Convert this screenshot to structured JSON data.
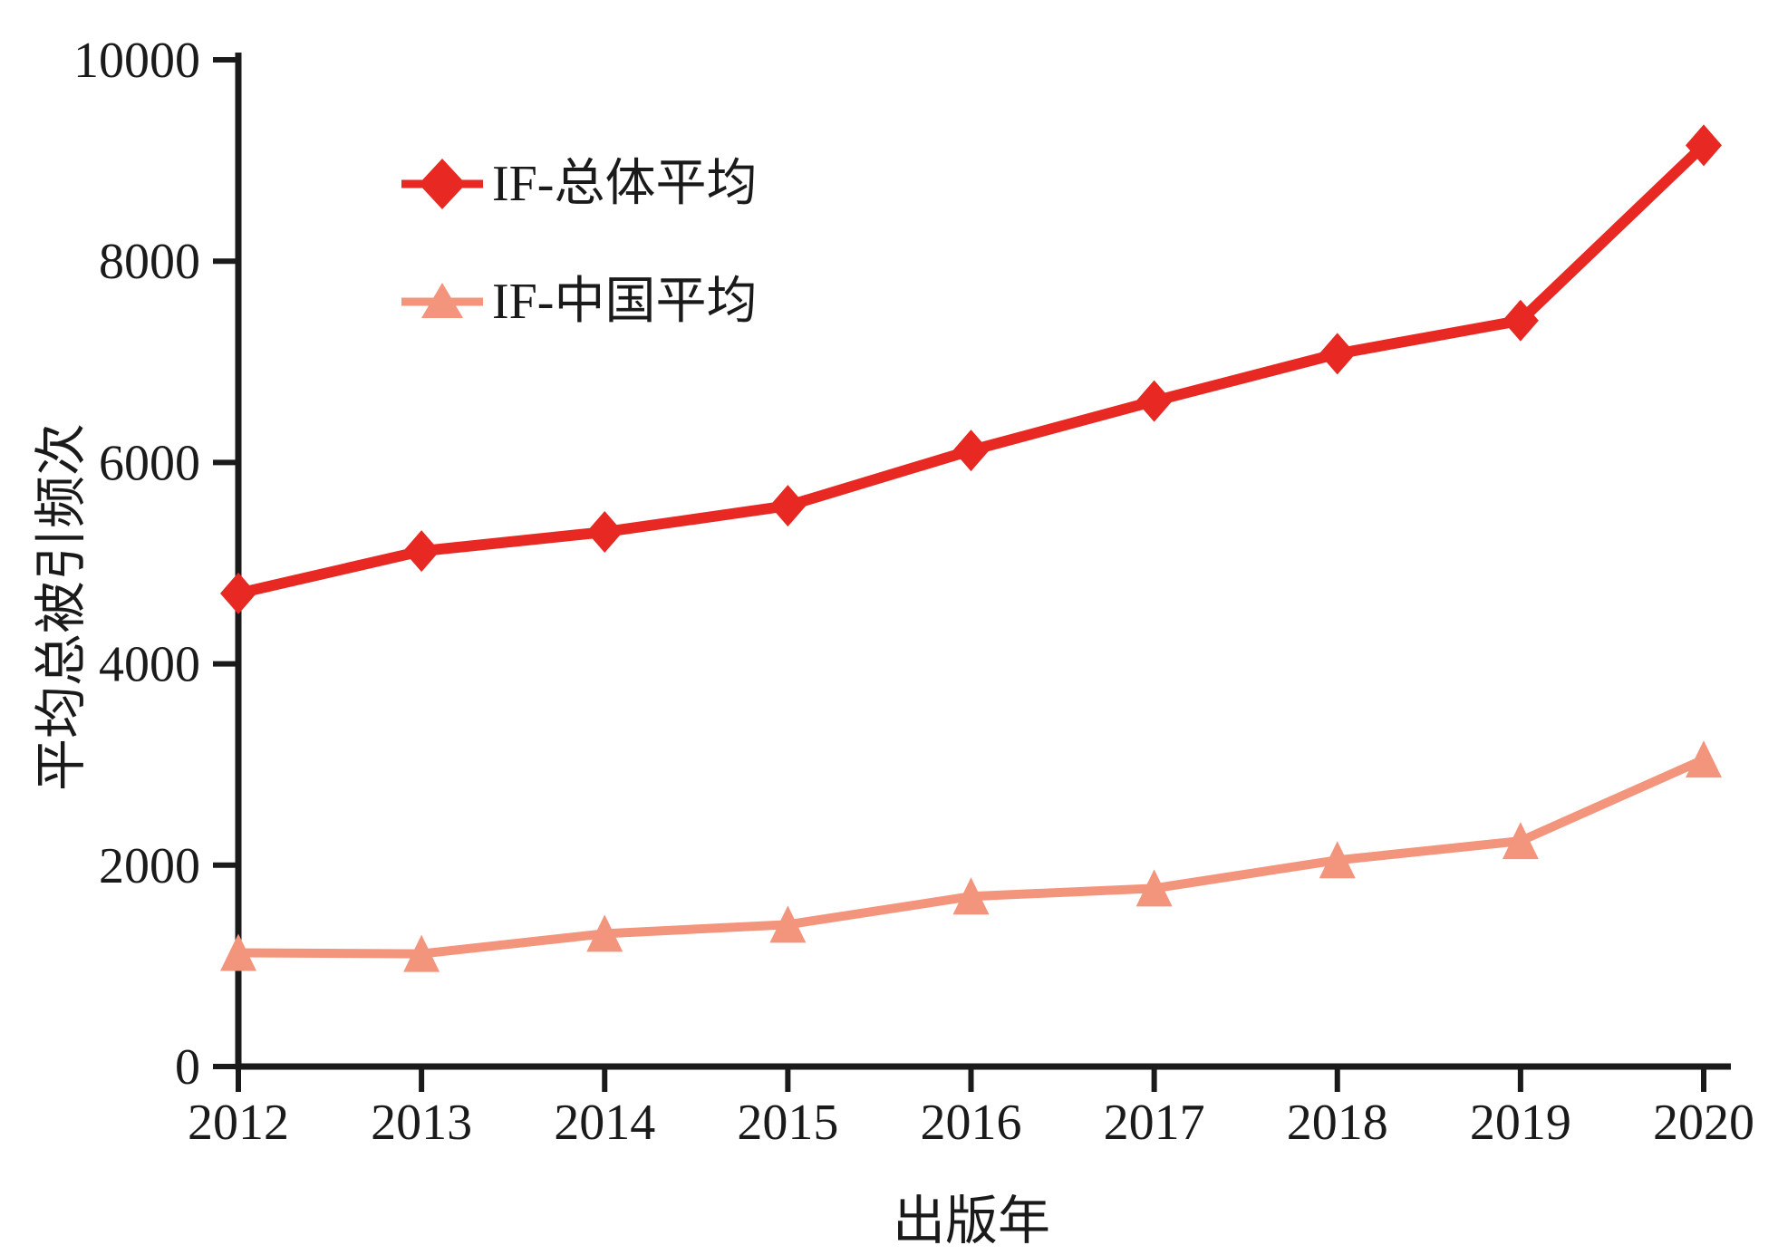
{
  "figure": {
    "background": "#ffffff",
    "text_color": "#1a1a1a"
  },
  "axes": {
    "y_title": "平均总被引频次",
    "x_title": "出版年",
    "y_tick_labels": [
      "0",
      "2000",
      "4000",
      "6000",
      "8000",
      "10000"
    ],
    "x_tick_labels": [
      "2012",
      "2013",
      "2014",
      "2015",
      "2016",
      "2017",
      "2018",
      "2019",
      "2020"
    ]
  },
  "legend": {
    "items": [
      {
        "label": "IF-总体平均",
        "marker": "diamond",
        "color": "#e82923"
      },
      {
        "label": "IF-中国平均",
        "marker": "triangle",
        "color": "#f3947c"
      }
    ]
  },
  "chart_data": {
    "type": "line",
    "x": [
      2012,
      2013,
      2014,
      2015,
      2016,
      2017,
      2018,
      2019,
      2020
    ],
    "series": [
      {
        "name": "IF-总体平均",
        "marker": "diamond",
        "color": "#e82923",
        "values": [
          4700,
          5120,
          5310,
          5570,
          6120,
          6610,
          7080,
          7410,
          9150
        ]
      },
      {
        "name": "IF-中国平均",
        "marker": "triangle",
        "color": "#f3947c",
        "values": [
          1130,
          1120,
          1320,
          1410,
          1690,
          1770,
          2050,
          2240,
          3050
        ]
      }
    ],
    "title": "",
    "xlabel": "出版年",
    "ylabel": "平均总被引频次",
    "ylim": [
      0,
      10000
    ],
    "ytick_step": 2000,
    "grid": false,
    "legend_position": "upper-left-inside"
  }
}
